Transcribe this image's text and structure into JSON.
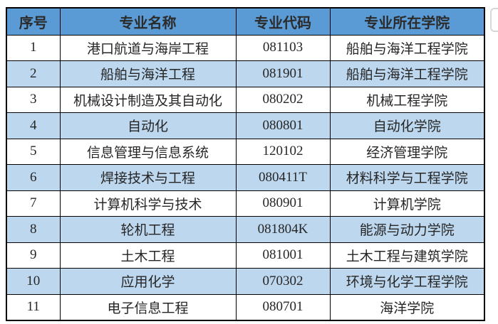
{
  "table": {
    "headers": {
      "seq": "序号",
      "name": "专业名称",
      "code": "专业代码",
      "college": "专业所在学院"
    },
    "rows": [
      {
        "seq": "1",
        "name": "港口航道与海岸工程",
        "code": "081103",
        "college": "船舶与海洋工程学院"
      },
      {
        "seq": "2",
        "name": "船舶与海洋工程",
        "code": "081901",
        "college": "船舶与海洋工程学院"
      },
      {
        "seq": "3",
        "name": "机械设计制造及其自动化",
        "code": "080202",
        "college": "机械工程学院"
      },
      {
        "seq": "4",
        "name": "自动化",
        "code": "080801",
        "college": "自动化学院"
      },
      {
        "seq": "5",
        "name": "信息管理与信息系统",
        "code": "120102",
        "college": "经济管理学院"
      },
      {
        "seq": "6",
        "name": "焊接技术与工程",
        "code": "080411T",
        "college": "材料科学与工程学院"
      },
      {
        "seq": "7",
        "name": "计算机科学与技术",
        "code": "080901",
        "college": "计算机学院"
      },
      {
        "seq": "8",
        "name": "轮机工程",
        "code": "081804K",
        "college": "能源与动力学院"
      },
      {
        "seq": "9",
        "name": "土木工程",
        "code": "081001",
        "college": "土木工程与建筑学院"
      },
      {
        "seq": "10",
        "name": "应用化学",
        "code": "070302",
        "college": "环境与化学工程学院"
      },
      {
        "seq": "11",
        "name": "电子信息工程",
        "code": "080701",
        "college": "海洋学院"
      }
    ]
  },
  "colors": {
    "header_bg": "#5B9BD5",
    "alt_row_bg": "#BDD7EE",
    "border": "#000000",
    "text": "#262626"
  }
}
